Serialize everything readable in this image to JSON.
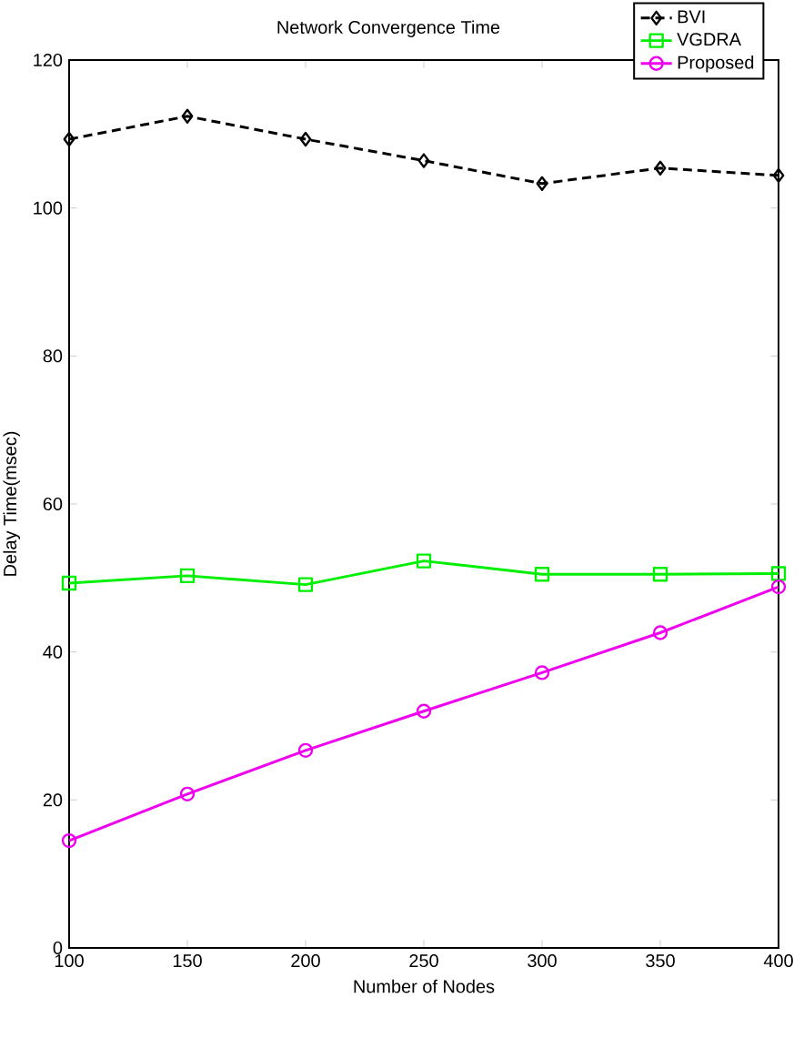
{
  "chart_data": {
    "type": "line",
    "title": "Network Convergence Time",
    "xlabel": "Number of Nodes",
    "ylabel": "Delay Time(msec)",
    "x": [
      100,
      150,
      200,
      250,
      300,
      350,
      400
    ],
    "series": [
      {
        "name": "BVI",
        "color": "#000000",
        "marker": "diamond",
        "line_style": "dashed",
        "values": [
          109.3,
          112.4,
          109.3,
          106.4,
          103.3,
          105.4,
          104.4
        ]
      },
      {
        "name": "VGDRA",
        "color": "#00ee00",
        "marker": "square",
        "line_style": "solid",
        "values": [
          49.3,
          50.3,
          49.1,
          52.3,
          50.5,
          50.5,
          50.6
        ]
      },
      {
        "name": "Proposed",
        "color": "#ee00ee",
        "marker": "circle",
        "line_style": "solid",
        "values": [
          14.5,
          20.8,
          26.7,
          32.0,
          37.2,
          42.6,
          48.8
        ]
      }
    ],
    "xlim": [
      100,
      400
    ],
    "xticks": [
      100,
      150,
      200,
      250,
      300,
      350,
      400
    ],
    "ylim": [
      0,
      120
    ],
    "yticks": [
      0,
      20,
      40,
      60,
      80,
      100,
      120
    ],
    "grid": false,
    "legend": "top right"
  }
}
